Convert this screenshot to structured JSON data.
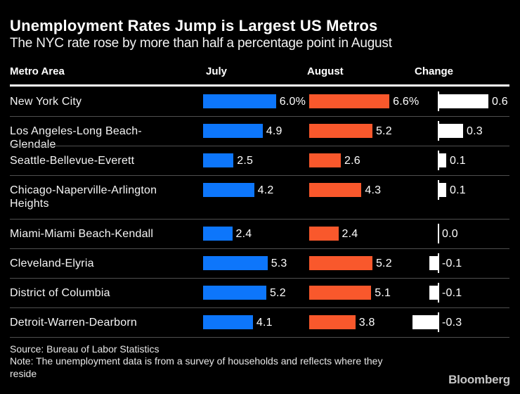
{
  "header": {
    "title": "Unemployment Rates Jump is Largest US Metros",
    "subtitle": "The NYC rate rose by more than half a percentage point in August"
  },
  "table": {
    "columns": [
      "Metro Area",
      "July",
      "August",
      "Change"
    ],
    "rows": [
      {
        "metro": "New York City",
        "july": 6.0,
        "july_label": "6.0%",
        "august": 6.6,
        "august_label": "6.6%",
        "change": 0.6,
        "change_label": "0.6"
      },
      {
        "metro": "Los Angeles-Long Beach-Glendale",
        "july": 4.9,
        "july_label": "4.9",
        "august": 5.2,
        "august_label": "5.2",
        "change": 0.3,
        "change_label": "0.3"
      },
      {
        "metro": "Seattle-Bellevue-Everett",
        "july": 2.5,
        "july_label": "2.5",
        "august": 2.6,
        "august_label": "2.6",
        "change": 0.1,
        "change_label": "0.1"
      },
      {
        "metro": "Chicago-Naperville-Arlington Heights",
        "july": 4.2,
        "july_label": "4.2",
        "august": 4.3,
        "august_label": "4.3",
        "change": 0.1,
        "change_label": "0.1"
      },
      {
        "metro": "Miami-Miami Beach-Kendall",
        "july": 2.4,
        "july_label": "2.4",
        "august": 2.4,
        "august_label": "2.4",
        "change": 0.0,
        "change_label": "0.0"
      },
      {
        "metro": "Cleveland-Elyria",
        "july": 5.3,
        "july_label": "5.3",
        "august": 5.2,
        "august_label": "5.2",
        "change": -0.1,
        "change_label": "-0.1"
      },
      {
        "metro": "District of Columbia",
        "july": 5.2,
        "july_label": "5.2",
        "august": 5.1,
        "august_label": "5.1",
        "change": -0.1,
        "change_label": "-0.1"
      },
      {
        "metro": "Detroit-Warren-Dearborn",
        "july": 4.1,
        "july_label": "4.1",
        "august": 3.8,
        "august_label": "3.8",
        "change": -0.3,
        "change_label": "-0.3"
      }
    ]
  },
  "footer": {
    "source": "Source: Bureau of Labor Statistics",
    "note": "Note: The unemployment data is from a survey of households and reflects where they reside",
    "brand": "Bloomberg"
  },
  "colors": {
    "background": "#000000",
    "july_bar": "#0d76fb",
    "august_bar": "#f9582c",
    "change_bar": "#ffffff",
    "separator": "#4f4f4f",
    "header_rule": "#ffffff"
  },
  "chart_data": {
    "type": "bar",
    "orientation": "horizontal",
    "title": "Unemployment Rates Jump is Largest US Metros",
    "subtitle": "The NYC rate rose by more than half a percentage point in August",
    "categories": [
      "New York City",
      "Los Angeles-Long Beach-Glendale",
      "Seattle-Bellevue-Everett",
      "Chicago-Naperville-Arlington Heights",
      "Miami-Miami Beach-Kendall",
      "Cleveland-Elyria",
      "District of Columbia",
      "Detroit-Warren-Dearborn"
    ],
    "series": [
      {
        "name": "July",
        "values": [
          6.0,
          4.9,
          2.5,
          4.2,
          2.4,
          5.3,
          5.2,
          4.1
        ],
        "color": "#0d76fb"
      },
      {
        "name": "August",
        "values": [
          6.6,
          5.2,
          2.6,
          4.3,
          2.4,
          5.2,
          5.1,
          3.8
        ],
        "color": "#f9582c"
      },
      {
        "name": "Change",
        "values": [
          0.6,
          0.3,
          0.1,
          0.1,
          0.0,
          -0.1,
          -0.1,
          -0.3
        ],
        "color": "#ffffff"
      }
    ],
    "unit": "percentage points",
    "xlim_rates": [
      0,
      7
    ],
    "xlim_change": [
      -0.6,
      0.6
    ],
    "grid": false,
    "legend_position": "column-headers",
    "source": "Bureau of Labor Statistics"
  }
}
